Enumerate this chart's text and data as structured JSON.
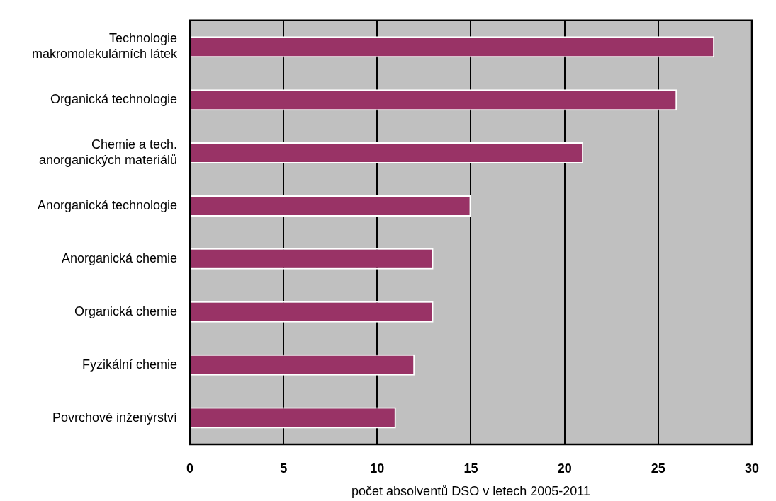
{
  "chart_data": {
    "type": "bar",
    "orientation": "horizontal",
    "categories": [
      "Technologie makromolekulárních látek",
      "Organická technologie",
      "Chemie a tech. anorganických materiálů",
      "Anorganická technologie",
      "Anorganická chemie",
      "Organická chemie",
      "Fyzikální chemie",
      "Povrchové inženýrství"
    ],
    "values": [
      28,
      26,
      21,
      15,
      13,
      13,
      12,
      11
    ],
    "color": "#993366",
    "xlabel": "počet absolventů DSO v letech 2005-2011",
    "xlim": [
      0,
      30
    ],
    "xticks": [
      0,
      5,
      10,
      15,
      20,
      25,
      30
    ],
    "grid": "x"
  }
}
